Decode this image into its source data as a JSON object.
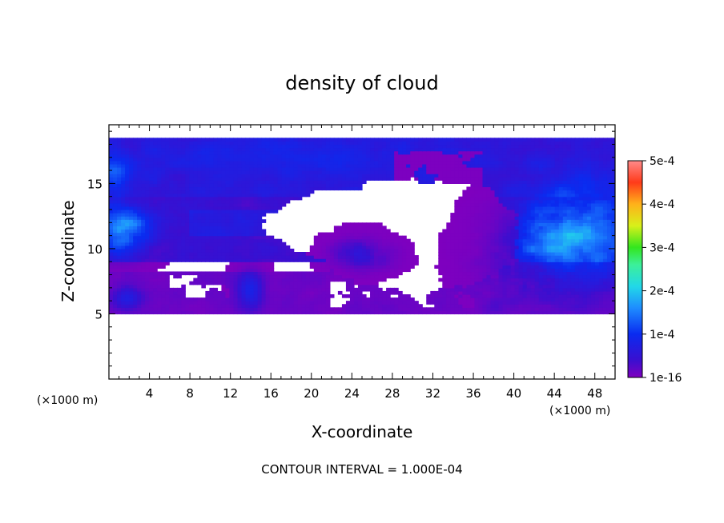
{
  "chart_data": {
    "type": "heatmap",
    "title": "density of cloud",
    "xlabel": "X-coordinate",
    "ylabel": "Z-coordinate",
    "x_unit_label": "(×1000 m)",
    "y_unit_label": "(×1000 m)",
    "xlim": [
      0,
      50
    ],
    "ylim": [
      0,
      19.5
    ],
    "x_ticks": [
      4,
      8,
      12,
      16,
      20,
      24,
      28,
      32,
      36,
      40,
      44,
      48
    ],
    "y_ticks": [
      5,
      10,
      15
    ],
    "colorbar": {
      "ticks": [
        "1e-16",
        "1e-4",
        "2e-4",
        "3e-4",
        "4e-4",
        "5e-4"
      ],
      "min": 0,
      "max": 0.0005
    },
    "footer": "CONTOUR INTERVAL = 1.000E-04",
    "colors": {
      "low": "#7f00bf",
      "mid": "#0a2bf0",
      "high": "#ff3333",
      "background": "#ffffff"
    },
    "regions": [
      {
        "kind": "cloud_layer_upper",
        "x": [
          0,
          50
        ],
        "z": [
          14,
          18.6
        ],
        "value": 6e-05
      },
      {
        "kind": "cloud_layer_middle",
        "x": [
          0,
          33
        ],
        "z": [
          9,
          13.5
        ],
        "value": 4e-05
      },
      {
        "kind": "cloud_layer_lower",
        "x": [
          0,
          37
        ],
        "z": [
          5,
          8.3
        ],
        "value": 2e-05
      },
      {
        "kind": "cloud_right_cluster",
        "x": [
          35,
          50
        ],
        "z": [
          5,
          16
        ],
        "value": 0.00013
      },
      {
        "kind": "peak_left",
        "x": [
          0,
          3
        ],
        "z": [
          10,
          13
        ],
        "value": 0.00016
      },
      {
        "kind": "peak_right",
        "x": [
          44,
          50
        ],
        "z": [
          9.5,
          13.5
        ],
        "value": 0.00018
      }
    ]
  }
}
